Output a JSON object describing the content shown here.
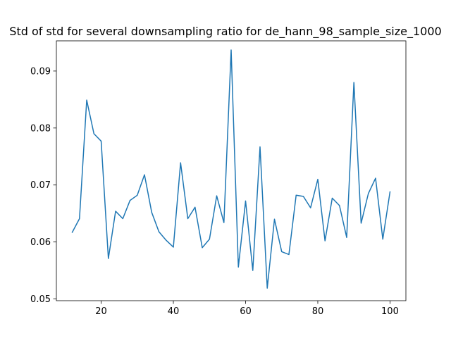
{
  "chart_data": {
    "type": "line",
    "title": "Std of std for several downsampling ratio for de_hann_98_sample_size_1000",
    "xlabel": "",
    "ylabel": "",
    "xlim": [
      7.6,
      104.4
    ],
    "ylim": [
      0.0497,
      0.0953
    ],
    "xticks": [
      20,
      40,
      60,
      80,
      100
    ],
    "yticks": [
      0.05,
      0.06,
      0.07,
      0.08,
      0.09
    ],
    "xtick_labels": [
      "20",
      "40",
      "60",
      "80",
      "100"
    ],
    "ytick_labels": [
      "0.05",
      "0.06",
      "0.07",
      "0.08",
      "0.09"
    ],
    "grid": false,
    "series": [
      {
        "color": "#1f77b4",
        "x": [
          12,
          14,
          16,
          18,
          20,
          22,
          24,
          26,
          28,
          30,
          32,
          34,
          36,
          38,
          40,
          42,
          44,
          46,
          48,
          50,
          52,
          54,
          56,
          58,
          60,
          62,
          64,
          66,
          68,
          70,
          72,
          74,
          76,
          78,
          80,
          82,
          84,
          86,
          88,
          90,
          92,
          94,
          96,
          98,
          100
        ],
        "y": [
          0.0617,
          0.0641,
          0.0849,
          0.079,
          0.0777,
          0.0571,
          0.0654,
          0.0641,
          0.0673,
          0.0682,
          0.0718,
          0.0652,
          0.0618,
          0.0603,
          0.0591,
          0.0739,
          0.0641,
          0.0661,
          0.059,
          0.0605,
          0.0681,
          0.0634,
          0.0937,
          0.0556,
          0.0672,
          0.055,
          0.0767,
          0.0519,
          0.064,
          0.0583,
          0.0578,
          0.0682,
          0.068,
          0.066,
          0.071,
          0.0602,
          0.0677,
          0.0664,
          0.0608,
          0.088,
          0.0633,
          0.0685,
          0.0712,
          0.0605,
          0.0688
        ]
      }
    ]
  }
}
